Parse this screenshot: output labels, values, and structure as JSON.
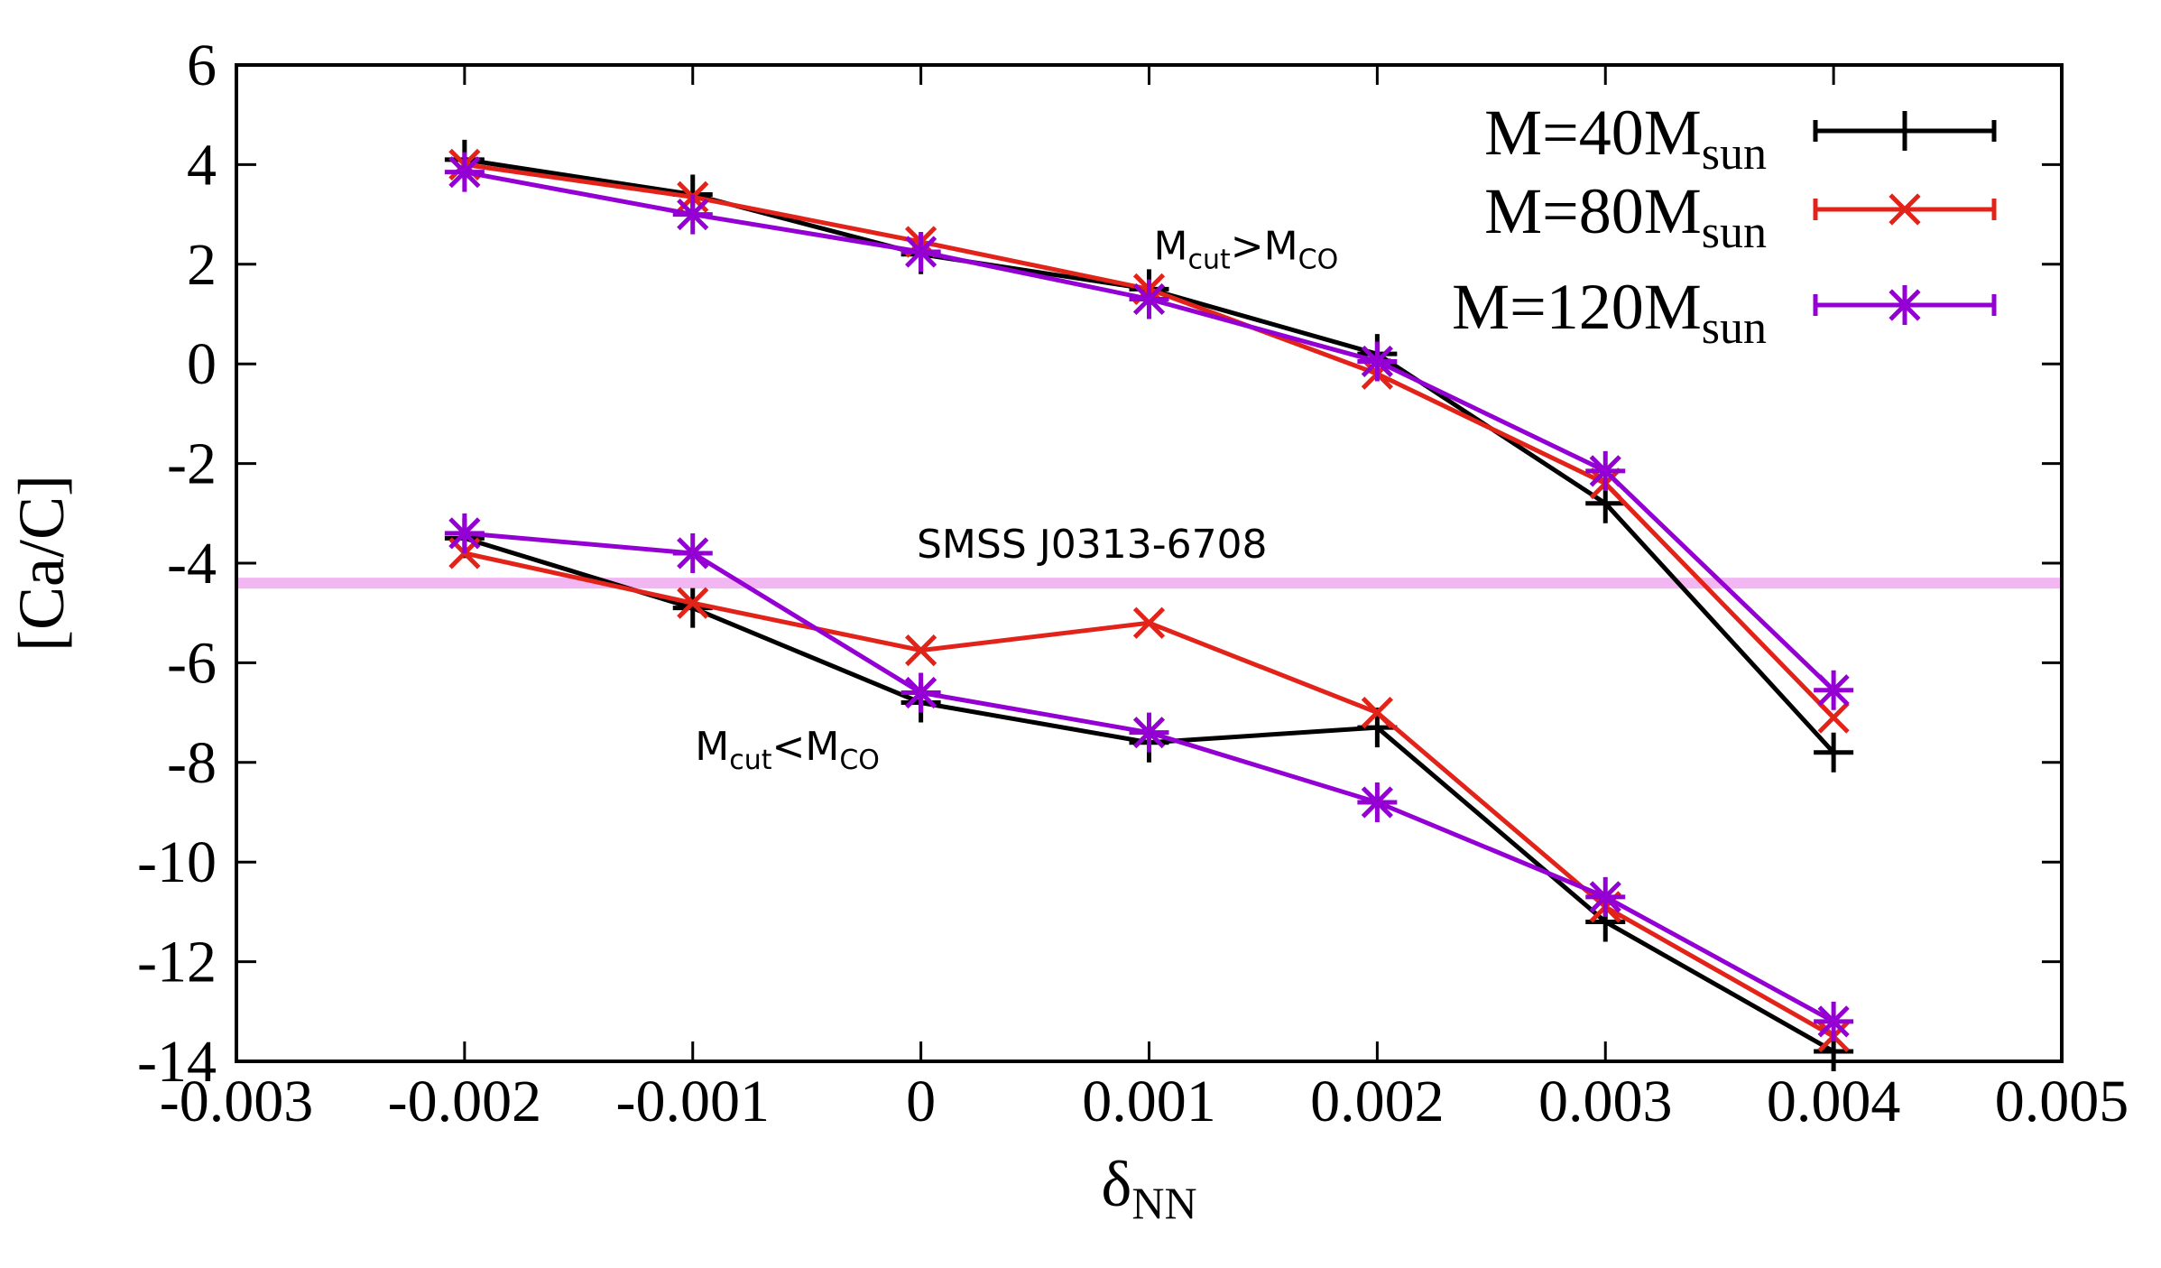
{
  "chart_data": {
    "type": "line",
    "title": "",
    "xlabel": {
      "main": "δ",
      "sub": "NN"
    },
    "ylabel": "[Ca/C]",
    "xlim": [
      -0.003,
      0.005
    ],
    "ylim": [
      -14,
      6
    ],
    "xticks": [
      {
        "v": -0.003,
        "label": "-0.003"
      },
      {
        "v": -0.002,
        "label": "-0.002"
      },
      {
        "v": -0.001,
        "label": "-0.001"
      },
      {
        "v": 0,
        "label": "0"
      },
      {
        "v": 0.001,
        "label": "0.001"
      },
      {
        "v": 0.002,
        "label": "0.002"
      },
      {
        "v": 0.003,
        "label": "0.003"
      },
      {
        "v": 0.004,
        "label": "0.004"
      },
      {
        "v": 0.005,
        "label": "0.005"
      }
    ],
    "yticks": [
      {
        "v": 6,
        "label": "6"
      },
      {
        "v": 4,
        "label": "4"
      },
      {
        "v": 2,
        "label": "2"
      },
      {
        "v": 0,
        "label": "0"
      },
      {
        "v": -2,
        "label": "-2"
      },
      {
        "v": -4,
        "label": "-4"
      },
      {
        "v": -6,
        "label": "-6"
      },
      {
        "v": -8,
        "label": "-8"
      },
      {
        "v": -10,
        "label": "-10"
      },
      {
        "v": -12,
        "label": "-12"
      },
      {
        "v": -14,
        "label": "-14"
      }
    ],
    "x": [
      -0.002,
      -0.001,
      0,
      0.001,
      0.002,
      0.003,
      0.004
    ],
    "series": [
      {
        "name": "M=40M",
        "sub": "sun",
        "color": "#000000",
        "marker": "plus",
        "group": "upper",
        "values": [
          4.1,
          3.4,
          2.2,
          1.5,
          0.2,
          -2.8,
          -7.8
        ]
      },
      {
        "name": "M=80M",
        "sub": "sun",
        "color": "#e2231a",
        "marker": "cross",
        "group": "upper",
        "values": [
          4.0,
          3.35,
          2.45,
          1.5,
          -0.2,
          -2.4,
          -7.1
        ]
      },
      {
        "name": "M=120M",
        "sub": "sun",
        "color": "#9400d3",
        "marker": "star",
        "group": "upper",
        "values": [
          3.85,
          3.0,
          2.25,
          1.3,
          0.05,
          -2.15,
          -6.55
        ]
      },
      {
        "name": "M=40M",
        "sub": "sun",
        "color": "#000000",
        "marker": "plus",
        "group": "lower",
        "values": [
          -3.5,
          -4.9,
          -6.8,
          -7.6,
          -7.3,
          -11.2,
          -13.8
        ]
      },
      {
        "name": "M=80M",
        "sub": "sun",
        "color": "#e2231a",
        "marker": "cross",
        "group": "lower",
        "values": [
          -3.8,
          -4.8,
          -5.75,
          -5.2,
          -7.0,
          -10.9,
          -13.5
        ]
      },
      {
        "name": "M=120M",
        "sub": "sun",
        "color": "#9400d3",
        "marker": "star",
        "group": "lower",
        "values": [
          -3.4,
          -3.8,
          -6.6,
          -7.4,
          -8.8,
          -10.7,
          -13.2
        ]
      }
    ],
    "reference_line": {
      "label": "SMSS J0313-6708",
      "y": -4.4,
      "color": "#f2b6f2"
    },
    "annotations": [
      {
        "main": "M",
        "sub1": "cut",
        "mid": ">M",
        "sub2": "CO",
        "x": 0.00102,
        "y": 2.1
      },
      {
        "main": "M",
        "sub1": "cut",
        "mid": "<M",
        "sub2": "CO",
        "x": -0.00099,
        "y": -7.95
      }
    ],
    "legend": {
      "position": "top-right"
    }
  }
}
